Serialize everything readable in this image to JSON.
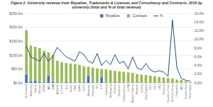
{
  "chart_data": {
    "type": "bar",
    "title": "Figure 2. University revenue from Royalties, Trademarks & Licenses and Consultancy and Contracts, 2019 by university (total and % of total revenue)",
    "categories": [
      "Queensland",
      "Melbourne",
      "Sydney",
      "Monash",
      "UNSW",
      "ANU",
      "UWA",
      "Adelaide",
      "La Trobe",
      "QUT",
      "Deakin",
      "RMIT",
      "Griffith",
      "Curtin",
      "Macquarie",
      "Newcastle",
      "JCU",
      "UTS",
      "Tasmania",
      "Wollongong",
      "Flinders",
      "Swinburne",
      "Charles Darwin",
      "UniSA",
      "Western Sydney",
      "Murdoch",
      "Victoria",
      "New England",
      "ECU",
      "CQU",
      "USQ",
      "Canberra",
      "Sunshine Coast",
      "Southern Cross",
      "Federation",
      "ACU",
      "Charles Sturt",
      "Notre Dame"
    ],
    "series": [
      {
        "name": "Royalties",
        "type": "bar",
        "color": "#4472c4",
        "values": [
          30,
          5,
          8,
          3,
          2,
          25,
          4,
          2,
          1,
          3,
          2,
          1,
          1,
          2,
          25,
          1,
          1,
          20,
          1,
          1,
          2,
          1,
          1,
          1,
          1,
          1,
          1,
          1,
          0,
          1,
          0,
          0,
          0,
          0,
          0,
          0,
          0,
          0
        ]
      },
      {
        "name": "Contracts",
        "type": "bar",
        "color": "#9bbb59",
        "values": [
          160,
          130,
          122,
          122,
          113,
          85,
          96,
          78,
          74,
          69,
          68,
          67,
          64,
          58,
          33,
          54,
          51,
          30,
          47,
          45,
          42,
          41,
          39,
          37,
          35,
          31,
          29,
          27,
          26,
          23,
          22,
          20,
          18,
          16,
          12,
          10,
          6,
          3
        ]
      },
      {
        "name": "%",
        "type": "line",
        "axis": "y2",
        "color": "#1f4e79",
        "values": [
          8.5,
          6.0,
          5.5,
          5.0,
          6.8,
          5.0,
          6.2,
          8.2,
          7.0,
          6.0,
          5.5,
          5.0,
          7.2,
          6.5,
          5.0,
          4.5,
          6.8,
          4.0,
          5.2,
          4.2,
          6.5,
          4.5,
          5.0,
          3.2,
          6.0,
          3.5,
          3.0,
          4.5,
          3.0,
          2.5,
          2.8,
          2.5,
          1.5,
          14.5,
          3.5,
          1.0,
          0.6,
          0.4
        ]
      }
    ],
    "stacked": true,
    "ylim": [
      0,
      250
    ],
    "yticks": [
      {
        "value": 0,
        "label": "$0.0m"
      },
      {
        "value": 50,
        "label": "$50.0m"
      },
      {
        "value": 100,
        "label": "$100.0m"
      },
      {
        "value": 150,
        "label": "$150.0m"
      },
      {
        "value": 200,
        "label": "$200.0m"
      },
      {
        "value": 250,
        "label": "$250.0m"
      }
    ],
    "y2lim": [
      0,
      16
    ],
    "y2ticks": [
      {
        "value": 0,
        "label": "0.0%"
      },
      {
        "value": 2,
        "label": "2.0%"
      },
      {
        "value": 4,
        "label": "4.0%"
      },
      {
        "value": 6,
        "label": "6.0%"
      },
      {
        "value": 8,
        "label": "8.0%"
      },
      {
        "value": 10,
        "label": "10.0%"
      },
      {
        "value": 12,
        "label": "12.0%"
      },
      {
        "value": 14,
        "label": "14.0%"
      },
      {
        "value": 16,
        "label": "16.0%"
      }
    ],
    "grid": true,
    "legend": "top"
  }
}
